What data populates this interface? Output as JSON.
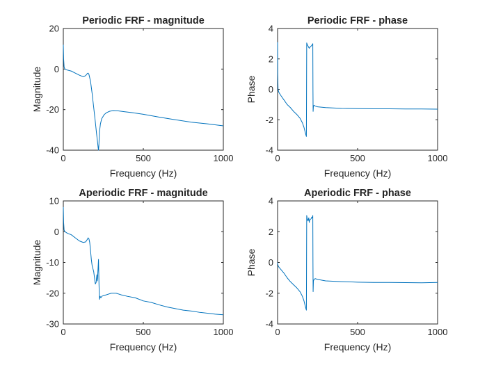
{
  "chart_data": [
    {
      "type": "line",
      "title": "Periodic FRF - magnitude",
      "xlabel": "Frequency (Hz)",
      "ylabel": "Magnitude",
      "xlim": [
        0,
        1000
      ],
      "ylim": [
        -40,
        20
      ],
      "xticks": [
        "0",
        "500",
        "1000"
      ],
      "yticks": [
        "20",
        "0",
        "-20",
        "-40"
      ],
      "line_color": "#0072BD",
      "series": [
        {
          "x": [
            0,
            2,
            5,
            10,
            25,
            50,
            75,
            100,
            125,
            140,
            150,
            155,
            160,
            170,
            180,
            190,
            200,
            208,
            214,
            218,
            220,
            222,
            226,
            232,
            240,
            255,
            270,
            290,
            310,
            340,
            380,
            430,
            500,
            600,
            700,
            800,
            900,
            1000
          ],
          "y": [
            12,
            5,
            1,
            0,
            -0.5,
            -1,
            -2,
            -3,
            -3.8,
            -3.2,
            -2.2,
            -2,
            -2.6,
            -6,
            -12,
            -19,
            -26,
            -32,
            -36,
            -39,
            -40,
            -38,
            -31,
            -27,
            -24.5,
            -22.5,
            -21.5,
            -20.8,
            -20.5,
            -20.6,
            -21,
            -21.5,
            -22.3,
            -23.7,
            -25,
            -26.2,
            -27,
            -28
          ]
        }
      ]
    },
    {
      "type": "line",
      "title": "Periodic FRF - phase",
      "xlabel": "Frequency (Hz)",
      "ylabel": "Phase",
      "xlim": [
        0,
        1000
      ],
      "ylim": [
        -4,
        4
      ],
      "xticks": [
        "0",
        "500",
        "1000"
      ],
      "yticks": [
        "4",
        "2",
        "0",
        "-2",
        "-4"
      ],
      "line_color": "#0072BD",
      "series": [
        {
          "x": [
            0,
            1,
            3,
            8,
            20,
            40,
            60,
            80,
            100,
            120,
            140,
            155,
            165,
            172,
            177,
            180,
            181,
            182,
            185,
            190,
            195,
            198,
            200,
            205,
            210,
            214,
            218,
            220,
            221,
            222,
            224,
            228,
            235,
            250,
            300,
            400,
            500,
            600,
            700,
            800,
            900,
            1000
          ],
          "y": [
            3.1,
            1,
            0,
            -0.2,
            -0.4,
            -0.7,
            -1,
            -1.2,
            -1.45,
            -1.65,
            -1.9,
            -2.2,
            -2.5,
            -2.8,
            -3.0,
            -3.1,
            0,
            3.05,
            2.95,
            2.85,
            2.75,
            2.7,
            2.75,
            2.8,
            2.85,
            2.9,
            2.95,
            3.0,
            0,
            -1.45,
            -1.1,
            -1.05,
            -1.1,
            -1.15,
            -1.2,
            -1.25,
            -1.27,
            -1.28,
            -1.28,
            -1.29,
            -1.29,
            -1.3
          ]
        }
      ]
    },
    {
      "type": "line",
      "title": "Aperiodic FRF - magnitude",
      "xlabel": "Frequency (Hz)",
      "ylabel": "Magnitude",
      "xlim": [
        0,
        1000
      ],
      "ylim": [
        -30,
        10
      ],
      "xticks": [
        "0",
        "500",
        "1000"
      ],
      "yticks": [
        "10",
        "0",
        "-10",
        "-20",
        "-30"
      ],
      "line_color": "#0072BD",
      "series": [
        {
          "x": [
            0,
            2,
            5,
            10,
            25,
            50,
            75,
            100,
            125,
            140,
            150,
            155,
            160,
            165,
            170,
            175,
            180,
            185,
            190,
            195,
            200,
            205,
            210,
            213,
            217,
            220,
            223,
            226,
            230,
            235,
            240,
            250,
            270,
            300,
            330,
            360,
            400,
            450,
            500,
            550,
            600,
            650,
            700,
            750,
            800,
            850,
            900,
            950,
            1000
          ],
          "y": [
            8,
            3,
            0.5,
            0,
            -0.5,
            -1,
            -2,
            -3,
            -3.5,
            -3.3,
            -2.5,
            -2,
            -2.3,
            -3.5,
            -6,
            -9,
            -11,
            -12,
            -13,
            -15,
            -17,
            -16.5,
            -14,
            -16,
            -12,
            -9,
            -17,
            -22,
            -21,
            -21.5,
            -21,
            -20.8,
            -20.5,
            -20,
            -20,
            -20.5,
            -21,
            -21.5,
            -22.5,
            -23,
            -23.8,
            -24.5,
            -25,
            -25.5,
            -25.8,
            -26.2,
            -26.5,
            -26.8,
            -27
          ]
        }
      ]
    },
    {
      "type": "line",
      "title": "Aperiodic FRF - phase",
      "xlabel": "Frequency (Hz)",
      "ylabel": "Phase",
      "xlim": [
        0,
        1000
      ],
      "ylim": [
        -4,
        4
      ],
      "xticks": [
        "0",
        "500",
        "1000"
      ],
      "yticks": [
        "4",
        "2",
        "0",
        "-2",
        "-4"
      ],
      "line_color": "#0072BD",
      "series": [
        {
          "x": [
            0,
            1,
            3,
            8,
            20,
            40,
            60,
            80,
            100,
            120,
            140,
            155,
            165,
            172,
            177,
            180,
            181,
            182,
            185,
            190,
            195,
            198,
            200,
            205,
            210,
            214,
            218,
            220,
            221,
            222,
            224,
            228,
            235,
            250,
            300,
            400,
            500,
            600,
            700,
            800,
            900,
            1000
          ],
          "y": [
            0,
            -0.1,
            -0.2,
            -0.3,
            -0.45,
            -0.7,
            -1,
            -1.25,
            -1.45,
            -1.65,
            -1.9,
            -2.2,
            -2.5,
            -2.8,
            -3.0,
            -3.1,
            0,
            3.05,
            2.85,
            2.7,
            2.9,
            2.6,
            2.75,
            2.8,
            2.85,
            2.95,
            2.9,
            3.05,
            0,
            -1.9,
            -1.2,
            -1.1,
            -1.05,
            -1.1,
            -1.2,
            -1.25,
            -1.28,
            -1.3,
            -1.3,
            -1.31,
            -1.32,
            -1.3
          ]
        }
      ]
    }
  ]
}
